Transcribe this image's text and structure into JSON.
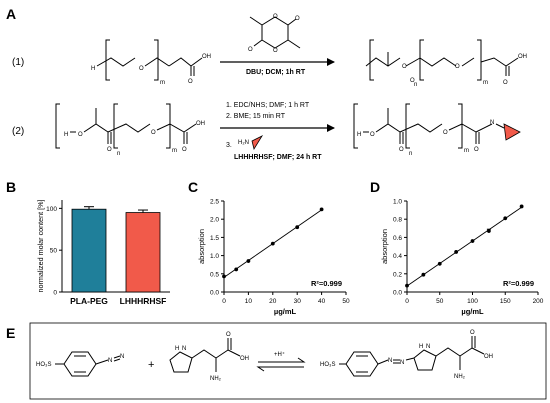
{
  "panels": {
    "A": "A",
    "B": "B",
    "C": "C",
    "D": "D",
    "E": "E"
  },
  "panelA": {
    "step1_label": "(1)",
    "step2_label": "(2)",
    "step1_cond": "DBU; DCM; 1h RT",
    "step2_lines": [
      "1. EDC/NHS; DMF; 1 h RT",
      "2. BME; 15 min RT",
      "3."
    ],
    "step2_last": "LHHHRHSF; DMF; 24 h RT",
    "amine": "H₂N",
    "atoms": {
      "H": "H",
      "O": "O",
      "OH": "OH",
      "N": "N",
      "m": "m",
      "n": "n"
    }
  },
  "chart_data": [
    {
      "type": "bar",
      "categories": [
        "PLA-PEG",
        "LHHHRHSF"
      ],
      "values": [
        99,
        95
      ],
      "errors": [
        3,
        3
      ],
      "ylabel": "normalized molar content [%]",
      "ylim": [
        0,
        110
      ],
      "colors": [
        "#1f7f9a",
        "#f15a4a"
      ]
    },
    {
      "type": "scatter",
      "x": [
        0,
        5,
        10,
        20,
        30,
        40
      ],
      "y": [
        0.43,
        0.62,
        0.85,
        1.33,
        1.78,
        2.27
      ],
      "fit": true,
      "xlabel": "µg/mL",
      "ylabel": "absorption",
      "xlim": [
        0,
        50
      ],
      "ylim": [
        0,
        2.5
      ],
      "xticks": [
        0,
        10,
        20,
        30,
        40,
        50
      ],
      "yticks": [
        0.0,
        0.5,
        1.0,
        1.5,
        2.0,
        2.5
      ],
      "yticklabels": [
        "0.0",
        "0.5",
        "1.0",
        "1.5",
        "2.0",
        "2.5"
      ],
      "annotation": "R²=0.999"
    },
    {
      "type": "scatter",
      "x": [
        0,
        25,
        50,
        75,
        100,
        125,
        150,
        175
      ],
      "y": [
        0.07,
        0.19,
        0.31,
        0.44,
        0.56,
        0.67,
        0.81,
        0.94
      ],
      "errors": [
        0,
        0,
        0,
        0,
        0,
        0.02,
        0,
        0
      ],
      "fit": true,
      "xlabel": "µg/mL",
      "ylabel": "absorption",
      "xlim": [
        0,
        200
      ],
      "ylim": [
        0,
        1.0
      ],
      "xticks": [
        0,
        50,
        100,
        150,
        200
      ],
      "yticks": [
        0.0,
        0.2,
        0.4,
        0.6,
        0.8,
        1.0
      ],
      "yticklabels": [
        "0.0",
        "0.2",
        "0.4",
        "0.6",
        "0.8",
        "1.0"
      ],
      "annotation": "R²=0.999"
    }
  ],
  "bar_yticks": [
    0,
    50,
    100
  ],
  "panelE": {
    "so3h": "HO₃S",
    "plus": "+",
    "hplus": "+H⁺",
    "diazo": "N",
    "oh": "OH",
    "nh2": "NH₂",
    "nh": "N",
    "hn": "H",
    "o": "O"
  }
}
